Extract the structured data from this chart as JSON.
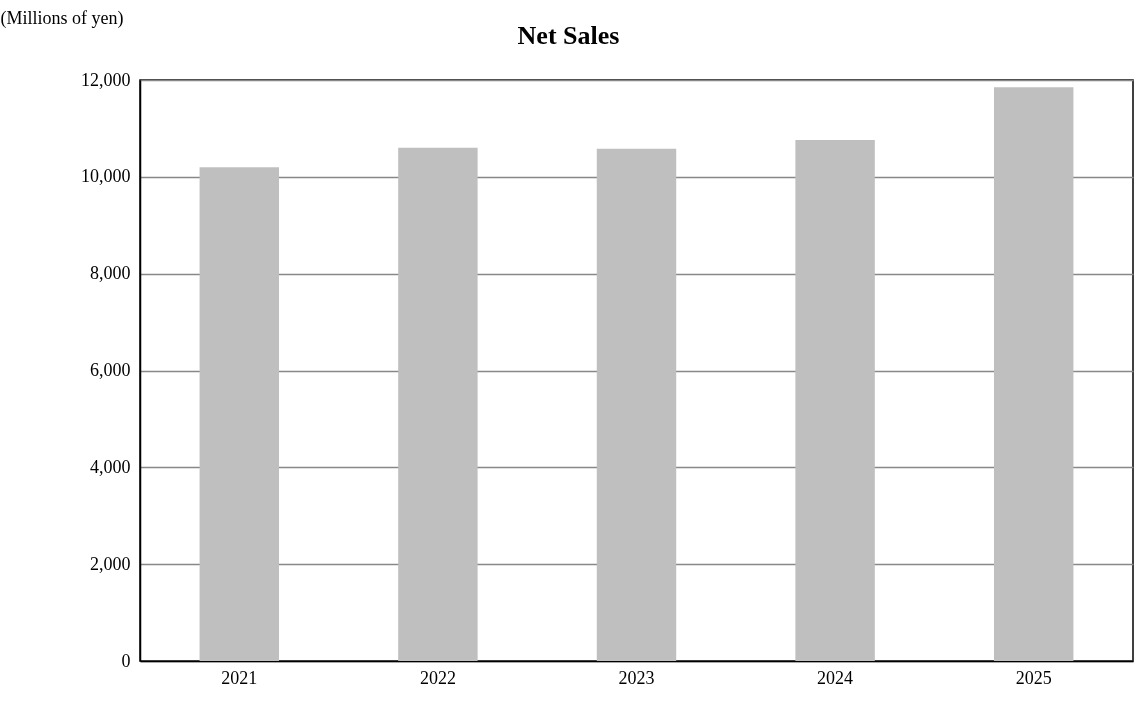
{
  "chart_data": {
    "type": "bar",
    "title": "Net Sales",
    "ylabel": "(Millions of yen)",
    "categories": [
      "2021",
      "2022",
      "2023",
      "2024",
      "2025"
    ],
    "values": [
      10200,
      10600,
      10580,
      10760,
      11850
    ],
    "color": "#bfbfbf",
    "ylim": [
      0,
      12000
    ],
    "yticks": [
      0,
      {
        "value": 2000,
        "label": "2,000"
      },
      {
        "value": 4000,
        "label": "4,000"
      },
      {
        "value": 6000,
        "label": "6,000"
      },
      {
        "value": 8000,
        "label": "8,000"
      },
      {
        "value": 10000,
        "label": "10,000"
      },
      {
        "value": 12000,
        "label": "12,000"
      }
    ],
    "grid": "y"
  }
}
